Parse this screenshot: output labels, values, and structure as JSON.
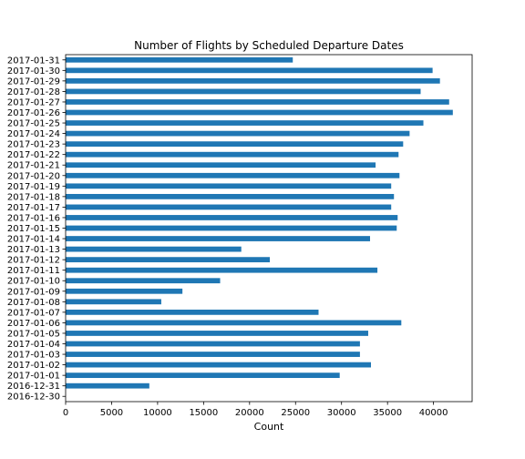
{
  "chart_data": {
    "type": "bar",
    "orientation": "horizontal",
    "title": "Number of Flights by Scheduled Departure Dates",
    "xlabel": "Count",
    "ylabel": "",
    "xlim": [
      0,
      44200
    ],
    "xticks": [
      0,
      5000,
      10000,
      15000,
      20000,
      25000,
      30000,
      35000,
      40000
    ],
    "grid": false,
    "bar_color": "#1f77b4",
    "categories": [
      "2016-12-30",
      "2016-12-31",
      "2017-01-01",
      "2017-01-02",
      "2017-01-03",
      "2017-01-04",
      "2017-01-05",
      "2017-01-06",
      "2017-01-07",
      "2017-01-08",
      "2017-01-09",
      "2017-01-10",
      "2017-01-11",
      "2017-01-12",
      "2017-01-13",
      "2017-01-14",
      "2017-01-15",
      "2017-01-16",
      "2017-01-17",
      "2017-01-18",
      "2017-01-19",
      "2017-01-20",
      "2017-01-21",
      "2017-01-22",
      "2017-01-23",
      "2017-01-24",
      "2017-01-25",
      "2017-01-26",
      "2017-01-27",
      "2017-01-28",
      "2017-01-29",
      "2017-01-30",
      "2017-01-31"
    ],
    "values": [
      0,
      9100,
      29800,
      33200,
      32000,
      32000,
      32900,
      36500,
      27500,
      10400,
      12700,
      16800,
      33900,
      22200,
      19100,
      33100,
      36000,
      36100,
      35400,
      35700,
      35400,
      36300,
      33700,
      36200,
      36700,
      37400,
      38900,
      42100,
      41700,
      38600,
      40700,
      39900,
      24700
    ]
  }
}
